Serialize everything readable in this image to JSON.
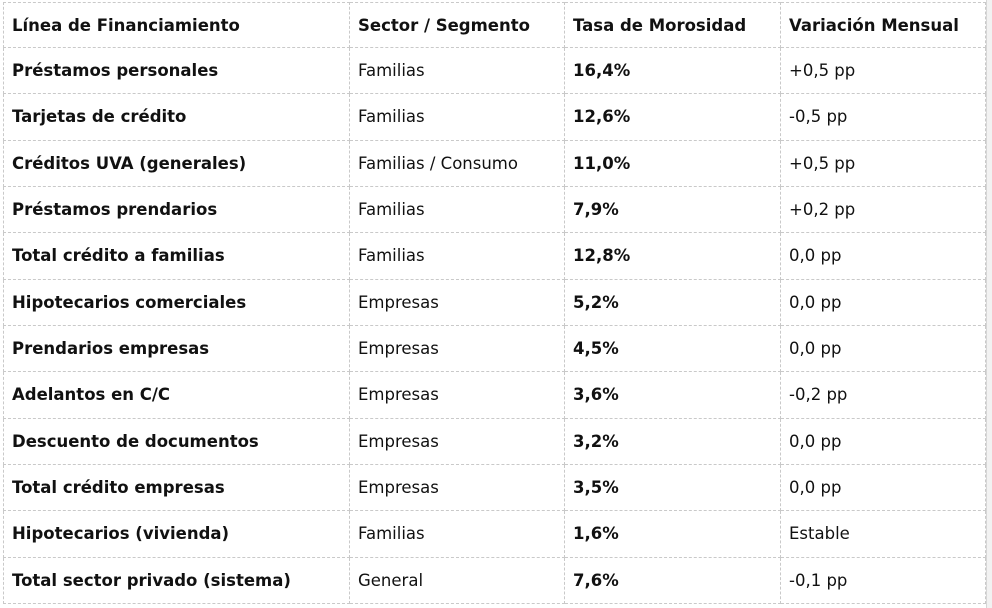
{
  "table": {
    "headers": [
      "Línea de Financiamiento",
      "Sector / Segmento",
      "Tasa de Morosidad",
      "Variación Mensual"
    ],
    "rows": [
      [
        "Préstamos personales",
        "Familias",
        "16,4%",
        "+0,5 pp"
      ],
      [
        "Tarjetas de crédito",
        "Familias",
        "12,6%",
        "-0,5 pp"
      ],
      [
        "Créditos UVA (generales)",
        "Familias / Consumo",
        "11,0%",
        "+0,5 pp"
      ],
      [
        "Préstamos prendarios",
        "Familias",
        "7,9%",
        "+0,2 pp"
      ],
      [
        "Total crédito a familias",
        "Familias",
        "12,8%",
        "0,0 pp"
      ],
      [
        "Hipotecarios comerciales",
        "Empresas",
        "5,2%",
        "0,0 pp"
      ],
      [
        "Prendarios empresas",
        "Empresas",
        "4,5%",
        "0,0 pp"
      ],
      [
        "Adelantos en C/C",
        "Empresas",
        "3,6%",
        "-0,2 pp"
      ],
      [
        "Descuento de documentos",
        "Empresas",
        "3,2%",
        "0,0 pp"
      ],
      [
        "Total crédito empresas",
        "Empresas",
        "3,5%",
        "0,0 pp"
      ],
      [
        "Hipotecarios (vivienda)",
        "Familias",
        "1,6%",
        "Estable"
      ],
      [
        "Total sector privado (sistema)",
        "General",
        "7,6%",
        "-0,1 pp"
      ]
    ]
  }
}
